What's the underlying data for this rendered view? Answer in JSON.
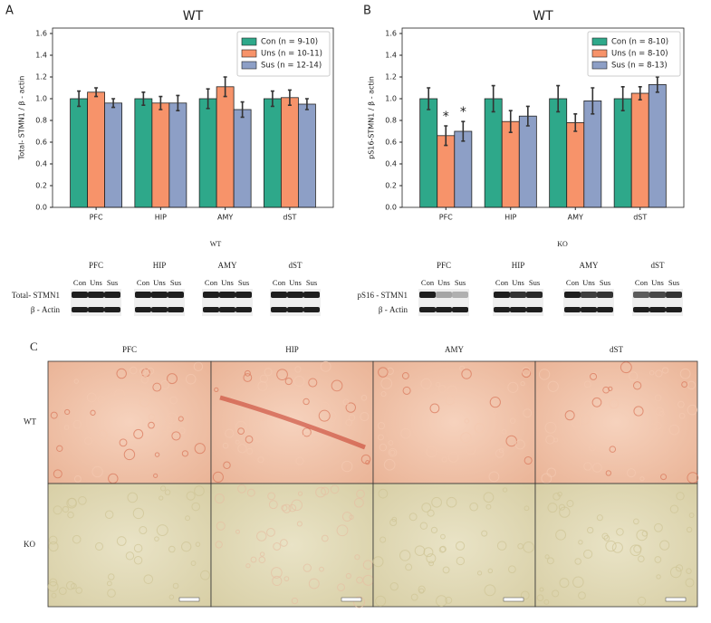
{
  "chart_data": [
    {
      "type": "bar",
      "title": "WT",
      "ylabel": "Total- STMN1 / β - actin",
      "categories": [
        "PFC",
        "HIP",
        "AMY",
        "dST"
      ],
      "series": [
        {
          "name": "Con (n = 9-10)",
          "color": "#2ea88a",
          "values": [
            1.0,
            1.0,
            1.0,
            1.0
          ],
          "errors": [
            0.07,
            0.06,
            0.09,
            0.07
          ]
        },
        {
          "name": "Uns (n = 10-11)",
          "color": "#f7936a",
          "values": [
            1.06,
            0.96,
            1.11,
            1.01
          ],
          "errors": [
            0.04,
            0.06,
            0.09,
            0.07
          ]
        },
        {
          "name": "Sus (n = 12-14)",
          "color": "#8d9fc6",
          "values": [
            0.96,
            0.96,
            0.9,
            0.95
          ],
          "errors": [
            0.04,
            0.07,
            0.07,
            0.05
          ]
        }
      ],
      "ylim": [
        0,
        1.65
      ],
      "yticks": [
        {
          "value": 0,
          "label": "0.0"
        },
        0.2,
        0.4,
        0.6,
        0.8,
        {
          "value": 1,
          "label": "1.0"
        },
        1.2,
        1.4,
        1.6
      ],
      "grid": false,
      "legend": "upper right"
    },
    {
      "type": "bar",
      "title": "WT",
      "ylabel": "pS16-STMN1 / β - actin",
      "categories": [
        "PFC",
        "HIP",
        "AMY",
        "dST"
      ],
      "series": [
        {
          "name": "Con (n = 8-10)",
          "color": "#2ea88a",
          "values": [
            1.0,
            1.0,
            1.0,
            1.0
          ],
          "errors": [
            0.1,
            0.12,
            0.12,
            0.11
          ]
        },
        {
          "name": "Uns (n = 8-10)",
          "color": "#f7936a",
          "values": [
            0.66,
            0.79,
            0.78,
            1.05
          ],
          "errors": [
            0.09,
            0.1,
            0.08,
            0.06
          ]
        },
        {
          "name": "Sus (n = 8-13)",
          "color": "#8d9fc6",
          "values": [
            0.7,
            0.84,
            0.98,
            1.13
          ],
          "errors": [
            0.09,
            0.09,
            0.12,
            0.07
          ]
        }
      ],
      "ylim": [
        0,
        1.65
      ],
      "yticks": [
        {
          "value": 0,
          "label": "0.0"
        },
        0.2,
        0.4,
        0.6,
        0.8,
        {
          "value": 1,
          "label": "1.0"
        },
        1.2,
        1.4,
        1.6
      ],
      "grid": false,
      "legend": "upper right",
      "annotations": [
        {
          "text": "*",
          "category": "PFC",
          "series": "Uns (n = 8-10)"
        },
        {
          "text": "*",
          "category": "PFC",
          "series": "Sus (n = 8-13)"
        }
      ]
    }
  ],
  "panels": {
    "a": "A",
    "b": "B",
    "c": "C"
  },
  "blots": [
    {
      "title": "WT",
      "regions": [
        "PFC",
        "HIP",
        "AMY",
        "dST"
      ],
      "lanes": [
        "Con",
        "Uns",
        "Sus"
      ],
      "rows": [
        "Total- STMN1",
        "β - Actin"
      ]
    },
    {
      "title": "KO",
      "regions": [
        "PFC",
        "HIP",
        "AMY",
        "dST"
      ],
      "lanes": [
        "Con",
        "Uns",
        "Sus"
      ],
      "rows": [
        "pS16 - STMN1",
        "β - Actin"
      ]
    }
  ],
  "histology": {
    "regions": [
      "PFC",
      "HIP",
      "AMY",
      "dST"
    ],
    "rows": [
      "WT",
      "KO"
    ]
  }
}
